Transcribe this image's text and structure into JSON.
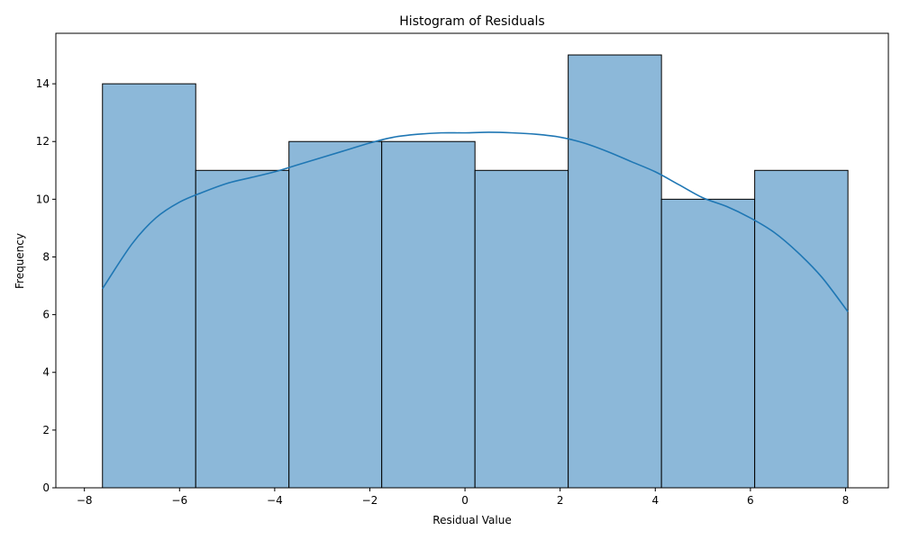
{
  "chart_data": {
    "type": "bar",
    "title": "Histogram of Residuals",
    "xlabel": "Residual Value",
    "ylabel": "Frequency",
    "xlim": [
      -8.6,
      8.9
    ],
    "ylim": [
      0,
      15.75
    ],
    "xticks": [
      -8,
      -6,
      -4,
      -2,
      0,
      2,
      4,
      6,
      8
    ],
    "yticks": [
      0,
      2,
      4,
      6,
      8,
      10,
      12,
      14
    ],
    "bins": [
      {
        "x0": -7.62,
        "x1": -5.66,
        "count": 14
      },
      {
        "x0": -5.66,
        "x1": -3.7,
        "count": 11
      },
      {
        "x0": -3.7,
        "x1": -1.75,
        "count": 12
      },
      {
        "x0": -1.75,
        "x1": 0.21,
        "count": 12
      },
      {
        "x0": 0.21,
        "x1": 2.17,
        "count": 11
      },
      {
        "x0": 2.17,
        "x1": 4.13,
        "count": 15
      },
      {
        "x0": 4.13,
        "x1": 6.09,
        "count": 10
      },
      {
        "x0": 6.09,
        "x1": 8.05,
        "count": 11
      }
    ],
    "kde": {
      "x": [
        -7.62,
        -7.0,
        -6.5,
        -6.0,
        -5.5,
        -5.0,
        -4.5,
        -4.0,
        -3.5,
        -3.0,
        -2.5,
        -2.0,
        -1.5,
        -1.0,
        -0.5,
        0.0,
        0.5,
        1.0,
        1.5,
        2.0,
        2.5,
        3.0,
        3.5,
        4.0,
        4.5,
        5.0,
        5.5,
        6.0,
        6.5,
        7.0,
        7.5,
        8.05
      ],
      "y": [
        6.9,
        8.45,
        9.35,
        9.9,
        10.25,
        10.55,
        10.75,
        10.95,
        11.2,
        11.45,
        11.7,
        11.95,
        12.15,
        12.25,
        12.3,
        12.3,
        12.32,
        12.3,
        12.25,
        12.15,
        11.95,
        11.65,
        11.3,
        10.95,
        10.5,
        10.05,
        9.75,
        9.35,
        8.85,
        8.15,
        7.3,
        6.1
      ]
    },
    "colors": {
      "bar_fill": "#8cb8d9",
      "bar_edge": "#000000",
      "kde_line": "#1f77b4"
    },
    "grid": false,
    "legend": "none"
  }
}
